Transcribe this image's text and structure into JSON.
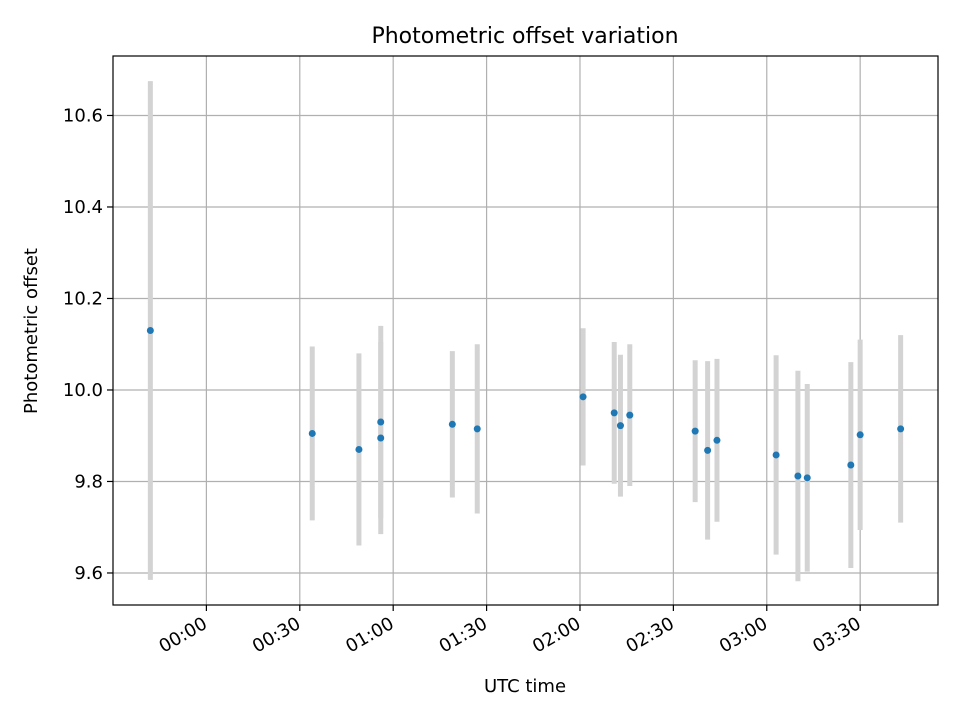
{
  "chart_data": {
    "type": "scatter",
    "title": "Photometric offset variation",
    "xlabel": "UTC time",
    "ylabel": "Photometric offset",
    "xlim": [
      "23:30",
      "03:55"
    ],
    "ylim": [
      9.53,
      10.73
    ],
    "grid": true,
    "x_ticks": [
      "00:00",
      "00:30",
      "01:00",
      "01:30",
      "02:00",
      "02:30",
      "03:00",
      "03:30"
    ],
    "y_ticks": [
      "9.6",
      "9.8",
      "10.0",
      "10.2",
      "10.4",
      "10.6"
    ],
    "points": [
      {
        "time": "23:42",
        "value": 10.13,
        "error": 0.545
      },
      {
        "time": "00:34",
        "value": 9.905,
        "error": 0.19
      },
      {
        "time": "00:49",
        "value": 9.87,
        "error": 0.21
      },
      {
        "time": "00:56",
        "value": 9.895,
        "error": 0.21
      },
      {
        "time": "00:56",
        "value": 9.93,
        "error": 0.21
      },
      {
        "time": "01:19",
        "value": 9.925,
        "error": 0.16
      },
      {
        "time": "01:27",
        "value": 9.915,
        "error": 0.185
      },
      {
        "time": "02:01",
        "value": 9.985,
        "error": 0.15
      },
      {
        "time": "02:11",
        "value": 9.95,
        "error": 0.155
      },
      {
        "time": "02:13",
        "value": 9.922,
        "error": 0.155
      },
      {
        "time": "02:16",
        "value": 9.945,
        "error": 0.155
      },
      {
        "time": "02:37",
        "value": 9.91,
        "error": 0.155
      },
      {
        "time": "02:41",
        "value": 9.868,
        "error": 0.195
      },
      {
        "time": "02:44",
        "value": 9.89,
        "error": 0.178
      },
      {
        "time": "03:03",
        "value": 9.858,
        "error": 0.218
      },
      {
        "time": "03:10",
        "value": 9.812,
        "error": 0.23
      },
      {
        "time": "03:13",
        "value": 9.808,
        "error": 0.205
      },
      {
        "time": "03:27",
        "value": 9.836,
        "error": 0.225
      },
      {
        "time": "03:30",
        "value": 9.902,
        "error": 0.208
      },
      {
        "time": "03:43",
        "value": 9.915,
        "error": 0.205
      }
    ],
    "colors": {
      "marker": "#1f77b4",
      "errorbar": "#d3d3d3",
      "grid": "#b0b0b0",
      "axes": "#000000"
    }
  }
}
